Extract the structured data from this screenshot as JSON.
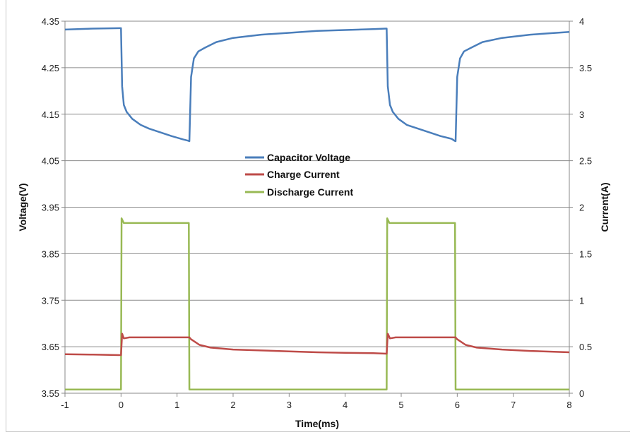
{
  "chart_data": {
    "type": "line",
    "title": "",
    "xlabel": "Time(ms)",
    "ylabel_left": "Voltage(V)",
    "ylabel_right": "Current(A)",
    "xlim": [
      -1,
      8
    ],
    "ylim_left": [
      3.55,
      4.35
    ],
    "ylim_right": [
      0,
      4
    ],
    "x_ticks": [
      "-1",
      "0",
      "1",
      "2",
      "3",
      "4",
      "5",
      "6",
      "7",
      "8"
    ],
    "y_left_ticks": [
      "3.55",
      "3.65",
      "3.75",
      "3.85",
      "3.95",
      "4.05",
      "4.15",
      "4.25",
      "4.35"
    ],
    "y_right_ticks": [
      "0",
      "0.5",
      "1",
      "1.5",
      "2",
      "2.5",
      "3",
      "3.5",
      "4"
    ],
    "grid": "horizontal",
    "legend_position": "center",
    "series": [
      {
        "name": "Capacitor Voltage",
        "axis": "left",
        "color": "#4a7ebb",
        "points": [
          [
            -1.0,
            4.332
          ],
          [
            -0.5,
            4.334
          ],
          [
            -0.02,
            4.335
          ],
          [
            0.0,
            4.335
          ],
          [
            0.02,
            4.21
          ],
          [
            0.05,
            4.17
          ],
          [
            0.1,
            4.155
          ],
          [
            0.2,
            4.14
          ],
          [
            0.35,
            4.127
          ],
          [
            0.5,
            4.119
          ],
          [
            0.7,
            4.111
          ],
          [
            0.9,
            4.103
          ],
          [
            1.1,
            4.096
          ],
          [
            1.2,
            4.093
          ],
          [
            1.22,
            4.092
          ],
          [
            1.25,
            4.23
          ],
          [
            1.3,
            4.27
          ],
          [
            1.38,
            4.285
          ],
          [
            1.5,
            4.293
          ],
          [
            1.7,
            4.305
          ],
          [
            2.0,
            4.314
          ],
          [
            2.5,
            4.321
          ],
          [
            3.0,
            4.325
          ],
          [
            3.5,
            4.329
          ],
          [
            4.0,
            4.331
          ],
          [
            4.5,
            4.333
          ],
          [
            4.72,
            4.334
          ],
          [
            4.74,
            4.334
          ],
          [
            4.76,
            4.21
          ],
          [
            4.8,
            4.17
          ],
          [
            4.85,
            4.155
          ],
          [
            4.95,
            4.14
          ],
          [
            5.1,
            4.127
          ],
          [
            5.3,
            4.119
          ],
          [
            5.5,
            4.111
          ],
          [
            5.7,
            4.103
          ],
          [
            5.9,
            4.097
          ],
          [
            5.95,
            4.093
          ],
          [
            5.97,
            4.092
          ],
          [
            6.0,
            4.23
          ],
          [
            6.05,
            4.27
          ],
          [
            6.12,
            4.285
          ],
          [
            6.25,
            4.293
          ],
          [
            6.45,
            4.305
          ],
          [
            6.8,
            4.314
          ],
          [
            7.3,
            4.321
          ],
          [
            8.0,
            4.327
          ]
        ]
      },
      {
        "name": "Charge Current",
        "axis": "right",
        "color": "#be4b48",
        "points": [
          [
            -1.0,
            0.42
          ],
          [
            -0.5,
            0.415
          ],
          [
            -0.02,
            0.41
          ],
          [
            0.0,
            0.41
          ],
          [
            0.02,
            0.64
          ],
          [
            0.05,
            0.59
          ],
          [
            0.15,
            0.6
          ],
          [
            0.5,
            0.6
          ],
          [
            1.0,
            0.6
          ],
          [
            1.22,
            0.6
          ],
          [
            1.25,
            0.58
          ],
          [
            1.4,
            0.52
          ],
          [
            1.6,
            0.49
          ],
          [
            2.0,
            0.47
          ],
          [
            2.5,
            0.46
          ],
          [
            3.0,
            0.45
          ],
          [
            3.5,
            0.44
          ],
          [
            4.0,
            0.435
          ],
          [
            4.5,
            0.43
          ],
          [
            4.74,
            0.425
          ],
          [
            4.76,
            0.64
          ],
          [
            4.8,
            0.59
          ],
          [
            4.9,
            0.6
          ],
          [
            5.3,
            0.6
          ],
          [
            5.8,
            0.6
          ],
          [
            5.97,
            0.6
          ],
          [
            6.0,
            0.58
          ],
          [
            6.15,
            0.52
          ],
          [
            6.35,
            0.49
          ],
          [
            6.8,
            0.47
          ],
          [
            7.3,
            0.455
          ],
          [
            8.0,
            0.44
          ]
        ]
      },
      {
        "name": "Discharge Current",
        "axis": "right",
        "color": "#98b954",
        "points": [
          [
            -1.0,
            0.04
          ],
          [
            0.0,
            0.04
          ],
          [
            0.01,
            1.88
          ],
          [
            0.05,
            1.83
          ],
          [
            0.5,
            1.83
          ],
          [
            1.21,
            1.83
          ],
          [
            1.22,
            0.04
          ],
          [
            4.74,
            0.04
          ],
          [
            4.75,
            1.88
          ],
          [
            4.79,
            1.83
          ],
          [
            5.3,
            1.83
          ],
          [
            5.96,
            1.83
          ],
          [
            5.97,
            0.04
          ],
          [
            8.0,
            0.04
          ]
        ]
      }
    ]
  }
}
